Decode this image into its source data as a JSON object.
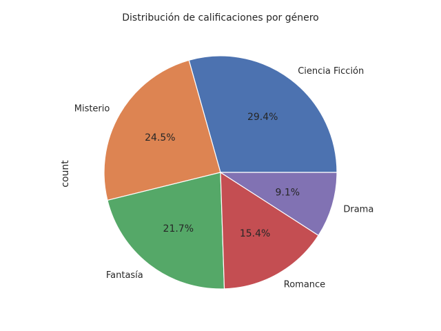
{
  "chart_data": {
    "type": "pie",
    "title": "Distribución de calificaciones por género",
    "ylabel": "count",
    "categories": [
      "Ciencia Ficción",
      "Misterio",
      "Fantasía",
      "Romance",
      "Drama"
    ],
    "values": [
      29.4,
      24.5,
      21.7,
      15.4,
      9.1
    ],
    "value_labels": [
      "29.4%",
      "24.5%",
      "21.7%",
      "15.4%",
      "9.1%"
    ],
    "colors": [
      "#4c72b0",
      "#dd8452",
      "#55a868",
      "#c44e52",
      "#8172b3"
    ],
    "start_angle": 0,
    "direction": "counterclockwise"
  }
}
